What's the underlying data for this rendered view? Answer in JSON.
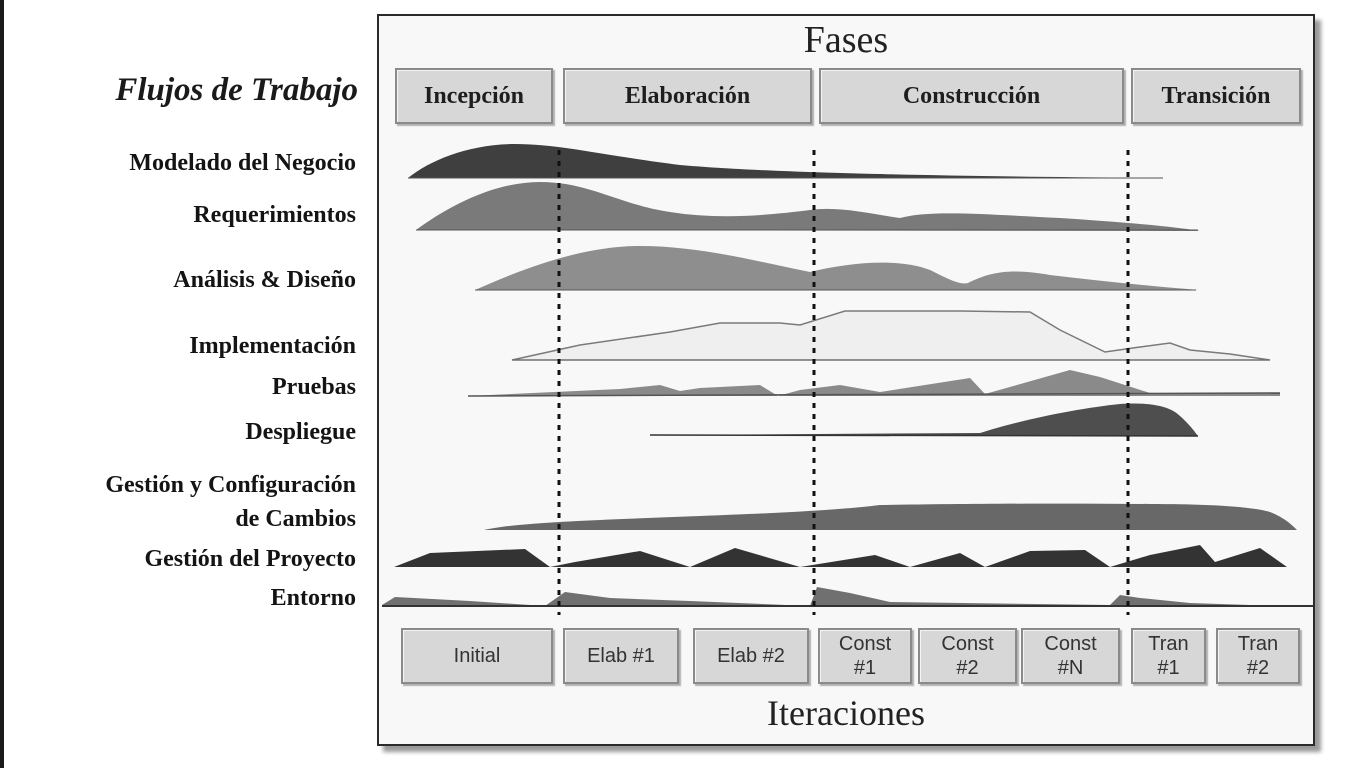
{
  "workflows_title": "Flujos de Trabajo",
  "phases_title": "Fases",
  "iterations_title": "Iteraciones",
  "phases": [
    "Incepción",
    "Elaboración",
    "Construcción",
    "Transición"
  ],
  "workflows": [
    "Modelado del Negocio",
    "Requerimientos",
    "Análisis & Diseño",
    "Implementación",
    "Pruebas",
    "Despliegue",
    "Gestión y Configuración",
    "de Cambios",
    "Gestión del Proyecto",
    "Entorno"
  ],
  "iterations": [
    {
      "line1": "Initial",
      "line2": ""
    },
    {
      "line1": "Elab #1",
      "line2": ""
    },
    {
      "line1": "Elab #2",
      "line2": ""
    },
    {
      "line1": "Const",
      "line2": "#1"
    },
    {
      "line1": "Const",
      "line2": "#2"
    },
    {
      "line1": "Const",
      "line2": "#N"
    },
    {
      "line1": "Tran",
      "line2": "#1"
    },
    {
      "line1": "Tran",
      "line2": "#2"
    }
  ]
}
